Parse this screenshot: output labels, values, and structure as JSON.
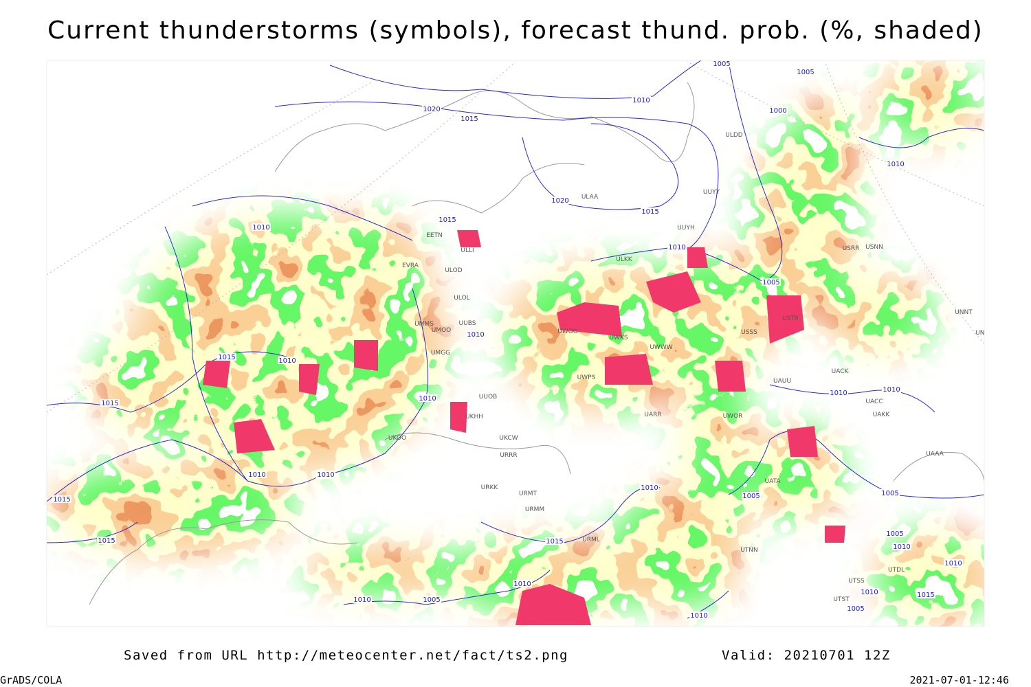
{
  "title": "Current thunderstorms (symbols), forecast thund. prob. (%, shaded)",
  "footer": {
    "source": "Saved from URL http://meteocenter.net/fact/ts2.png",
    "valid": "Valid: 20210701 12Z",
    "software": "GrADS/COLA",
    "timestamp": "2021-07-01-12:46"
  },
  "isobar_labels": [
    "1005",
    "1005",
    "1020",
    "1015",
    "1010",
    "1000",
    "1010",
    "1020",
    "1015",
    "1015",
    "1010",
    "1010",
    "1005",
    "1015",
    "1010",
    "1010",
    "1015",
    "1010",
    "1010",
    "1010",
    "1010",
    "1010",
    "1015",
    "1010",
    "1005",
    "1005",
    "1015",
    "1015",
    "1005",
    "1010",
    "1010",
    "1010",
    "1010",
    "1015",
    "1010",
    "1005",
    "1005",
    "1010"
  ],
  "station_labels": [
    "ULDD",
    "ULAA",
    "UUYY",
    "UUYH",
    "ULLI",
    "EETN",
    "EVRA",
    "ULOD",
    "ULOL",
    "UUBS",
    "UMMS",
    "UMOO",
    "UMGG",
    "UUOB",
    "UKHH",
    "UKOO",
    "UKCW",
    "URRR",
    "URKK",
    "URMT",
    "URMM",
    "URML",
    "ULKK",
    "UWGG",
    "UWKS",
    "UWPS",
    "UWWW",
    "USSS",
    "USTR",
    "UACK",
    "UACC",
    "UAKK",
    "UAAA",
    "UNNT",
    "UNBB",
    "UAUU",
    "UARR",
    "USRR",
    "USNN",
    "UTNN",
    "UTSS",
    "UTST",
    "UTDL",
    "UATA",
    "UWOR"
  ]
}
